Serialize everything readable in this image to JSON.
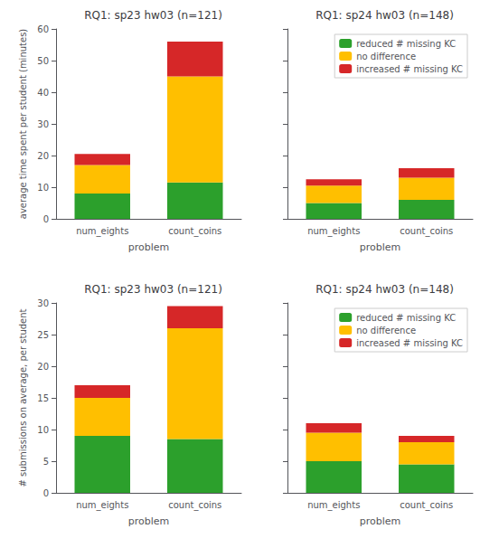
{
  "chart_data": [
    {
      "type": "bar",
      "title": "RQ1: sp23 hw03 (n=121)",
      "ylabel": "average time spent per student (minutes)",
      "xlabel": "problem",
      "categories": [
        "num_eights",
        "count_coins"
      ],
      "series": [
        {
          "color": "#2ca02c",
          "values": [
            8.0,
            11.5
          ]
        },
        {
          "color": "#ffbf00",
          "values": [
            9.0,
            33.5
          ]
        },
        {
          "color": "#d62728",
          "values": [
            3.5,
            11.0
          ]
        }
      ],
      "stacked": true,
      "ylim": [
        0,
        60
      ],
      "yticks": [
        0,
        10,
        20,
        30,
        40,
        50,
        60
      ],
      "grid": false
    },
    {
      "type": "bar",
      "title": "RQ1: sp24 hw03 (n=148)",
      "xlabel": "problem",
      "categories": [
        "num_eights",
        "count_coins"
      ],
      "series": [
        {
          "name": "reduced # missing KC",
          "color": "#2ca02c",
          "values": [
            5.0,
            6.0
          ]
        },
        {
          "name": "no difference",
          "color": "#ffbf00",
          "values": [
            5.5,
            7.0
          ]
        },
        {
          "name": "increased # missing KC",
          "color": "#d62728",
          "values": [
            2.0,
            3.0
          ]
        }
      ],
      "stacked": true,
      "ylim": [
        0,
        60
      ],
      "yticks": [
        0,
        10,
        20,
        30,
        40,
        50,
        60
      ],
      "grid": false,
      "legend": "upper right",
      "tick_labels": "x"
    },
    {
      "type": "bar",
      "title": "RQ1: sp23 hw03 (n=121)",
      "ylabel": "# submissions on average, per student",
      "xlabel": "problem",
      "categories": [
        "num_eights",
        "count_coins"
      ],
      "series": [
        {
          "color": "#2ca02c",
          "values": [
            9.0,
            8.5
          ]
        },
        {
          "color": "#ffbf00",
          "values": [
            6.0,
            17.5
          ]
        },
        {
          "color": "#d62728",
          "values": [
            2.0,
            3.5
          ]
        }
      ],
      "stacked": true,
      "ylim": [
        0,
        30
      ],
      "yticks": [
        0,
        5,
        10,
        15,
        20,
        25,
        30
      ],
      "grid": false
    },
    {
      "type": "bar",
      "title": "RQ1: sp24 hw03 (n=148)",
      "xlabel": "problem",
      "categories": [
        "num_eights",
        "count_coins"
      ],
      "series": [
        {
          "name": "reduced # missing KC",
          "color": "#2ca02c",
          "values": [
            5.0,
            4.5
          ]
        },
        {
          "name": "no difference",
          "color": "#ffbf00",
          "values": [
            4.5,
            3.5
          ]
        },
        {
          "name": "increased # missing KC",
          "color": "#d62728",
          "values": [
            1.5,
            1.0
          ]
        }
      ],
      "stacked": true,
      "ylim": [
        0,
        30
      ],
      "yticks": [
        0,
        5,
        10,
        15,
        20,
        25,
        30
      ],
      "grid": false,
      "legend": "upper right",
      "tick_labels": "x"
    }
  ]
}
